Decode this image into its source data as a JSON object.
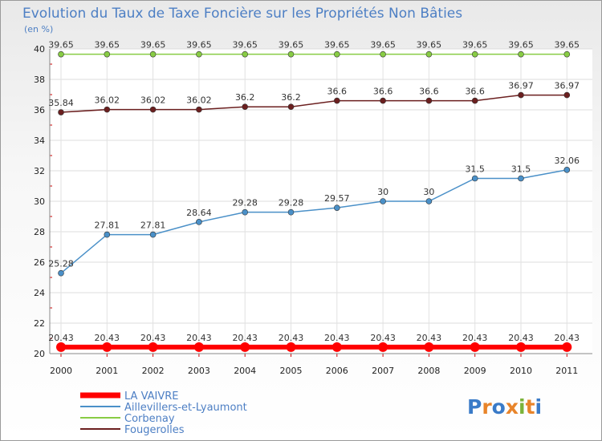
{
  "chart_data": {
    "type": "line",
    "title": "Evolution du Taux de Taxe Foncière sur les Propriétés Non Bâties",
    "subtitle": "(en %)",
    "x": [
      "2000",
      "2001",
      "2002",
      "2003",
      "2004",
      "2005",
      "2006",
      "2007",
      "2008",
      "2009",
      "2010",
      "2011"
    ],
    "ylim": [
      20,
      40
    ],
    "yticks": [
      "20",
      "22",
      "24",
      "26",
      "28",
      "30",
      "32",
      "34",
      "36",
      "38",
      "40"
    ],
    "grid": true,
    "legend_position": "bottom-left",
    "series": [
      {
        "name": "LA VAIVRE",
        "color": "#ff0000",
        "values": [
          20.43,
          20.43,
          20.43,
          20.43,
          20.43,
          20.43,
          20.43,
          20.43,
          20.43,
          20.43,
          20.43,
          20.43
        ],
        "labels": [
          "20.43",
          "20.43",
          "20.43",
          "20.43",
          "20.43",
          "20.43",
          "20.43",
          "20.43",
          "20.43",
          "20.43",
          "20.43",
          "20.43"
        ]
      },
      {
        "name": "Aillevillers-et-Lyaumont",
        "color": "#4a90c8",
        "values": [
          25.28,
          27.81,
          27.81,
          28.64,
          29.28,
          29.28,
          29.57,
          30,
          30,
          31.5,
          31.5,
          32.06
        ],
        "labels": [
          "25.28",
          "27.81",
          "27.81",
          "28.64",
          "29.28",
          "29.28",
          "29.57",
          "30",
          "30",
          "31.5",
          "31.5",
          "32.06"
        ]
      },
      {
        "name": "Corbenay",
        "color": "#88cc44",
        "values": [
          39.65,
          39.65,
          39.65,
          39.65,
          39.65,
          39.65,
          39.65,
          39.65,
          39.65,
          39.65,
          39.65,
          39.65
        ],
        "labels": [
          "39.65",
          "39.65",
          "39.65",
          "39.65",
          "39.65",
          "39.65",
          "39.65",
          "39.65",
          "39.65",
          "39.65",
          "39.65",
          "39.65"
        ]
      },
      {
        "name": "Fougerolles",
        "color": "#6b1f1f",
        "values": [
          35.84,
          36.02,
          36.02,
          36.02,
          36.2,
          36.2,
          36.6,
          36.6,
          36.6,
          36.6,
          36.97,
          36.97
        ],
        "labels": [
          "35.84",
          "36.02",
          "36.02",
          "36.02",
          "36.2",
          "36.2",
          "36.6",
          "36.6",
          "36.6",
          "36.6",
          "36.97",
          "36.97"
        ]
      }
    ]
  },
  "logo": {
    "text": "Proxiti"
  }
}
